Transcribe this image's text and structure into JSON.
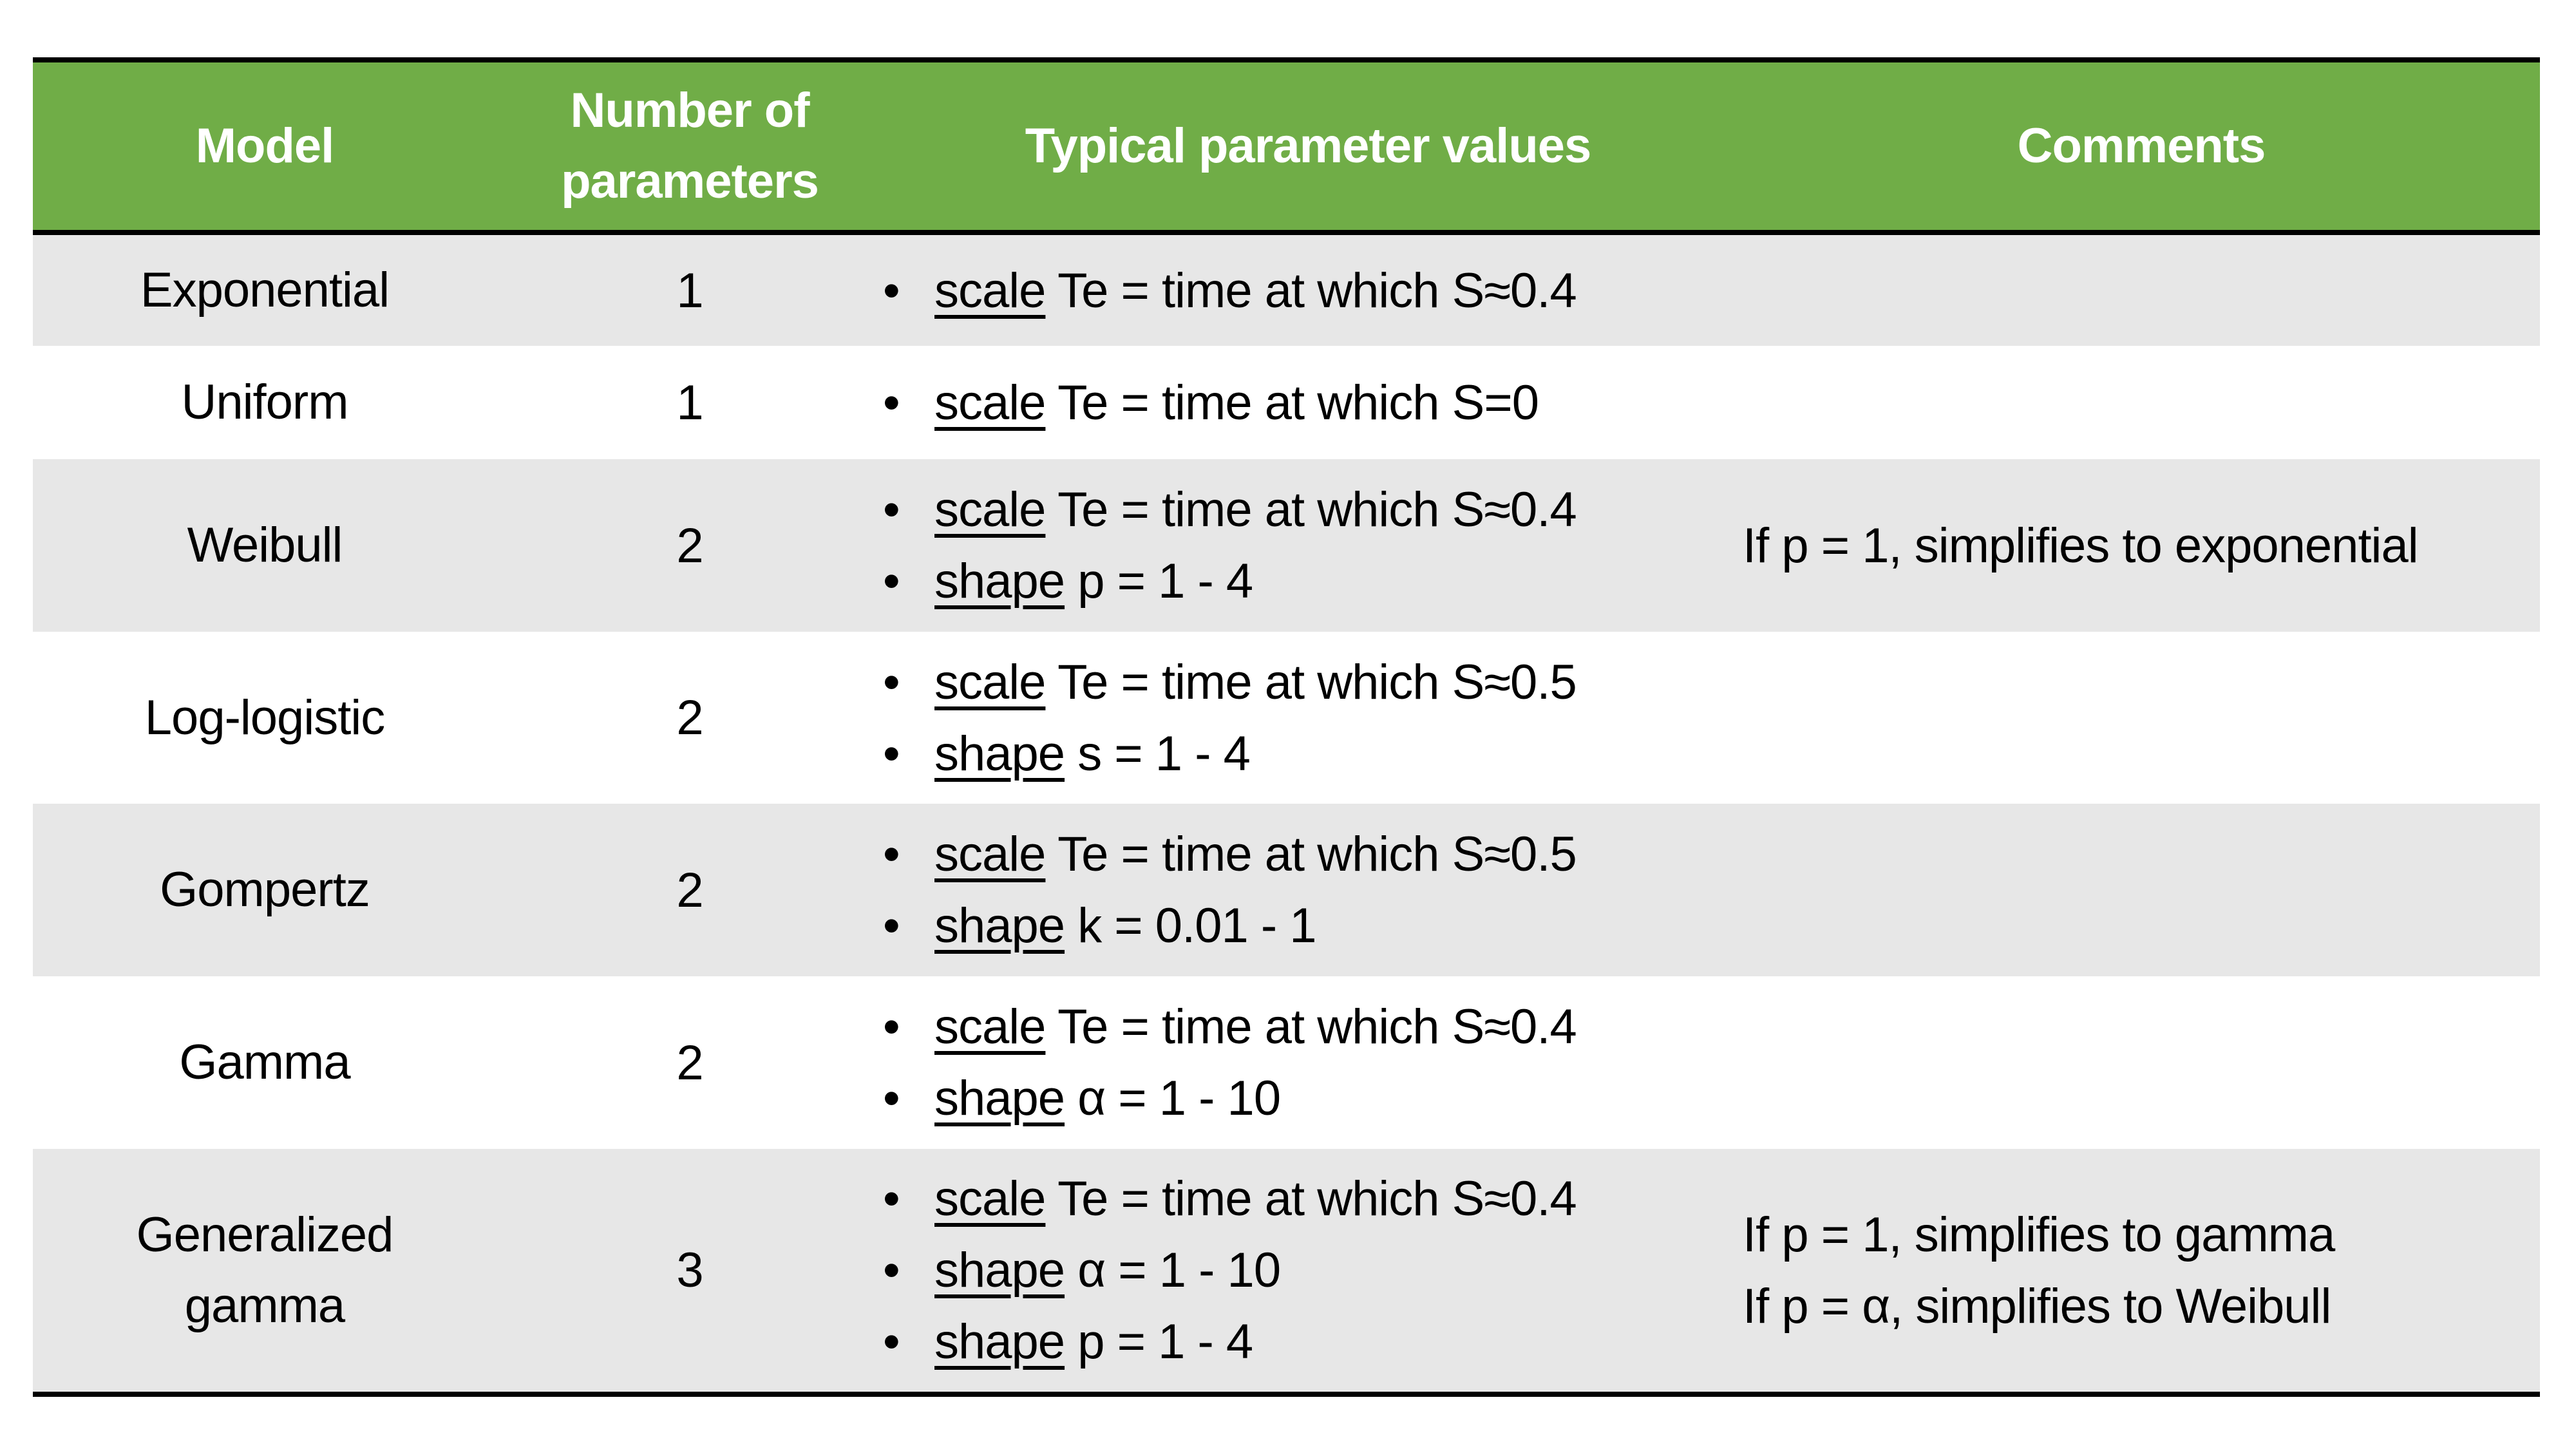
{
  "colors": {
    "header_bg": "#70ad47",
    "header_text": "#ffffff",
    "alt_row_bg": "#e7e7e7"
  },
  "header": {
    "model": "Model",
    "num_params": "Number of parameters",
    "values": "Typical parameter values",
    "comments": "Comments"
  },
  "rows": [
    {
      "model": "Exponential",
      "num": "1",
      "values": [
        {
          "k": "scale",
          "v": " Te = time at which S≈0.4"
        }
      ],
      "comments": []
    },
    {
      "model": "Uniform",
      "num": "1",
      "values": [
        {
          "k": "scale",
          "v": " Te = time at which S=0"
        }
      ],
      "comments": []
    },
    {
      "model": "Weibull",
      "num": "2",
      "values": [
        {
          "k": "scale",
          "v": " Te = time at which S≈0.4"
        },
        {
          "k": "shape",
          "v": " p = 1 - 4"
        }
      ],
      "comments": [
        "If p = 1, simplifies to exponential"
      ]
    },
    {
      "model": "Log-logistic",
      "num": "2",
      "values": [
        {
          "k": "scale",
          "v": " Te = time at which S≈0.5"
        },
        {
          "k": "shape",
          "v": " s = 1 - 4"
        }
      ],
      "comments": []
    },
    {
      "model": "Gompertz",
      "num": "2",
      "values": [
        {
          "k": "scale",
          "v": " Te = time at which S≈0.5"
        },
        {
          "k": "shape",
          "v": " k = 0.01 - 1"
        }
      ],
      "comments": []
    },
    {
      "model": "Gamma",
      "num": "2",
      "values": [
        {
          "k": "scale",
          "v": " Te = time at which S≈0.4"
        },
        {
          "k": "shape",
          "v": " α = 1 - 10"
        }
      ],
      "comments": []
    },
    {
      "model": "Generalized gamma",
      "num": "3",
      "values": [
        {
          "k": "scale",
          "v": " Te = time at which S≈0.4"
        },
        {
          "k": "shape",
          "v": " α = 1 - 10"
        },
        {
          "k": "shape",
          "v": " p = 1 - 4"
        }
      ],
      "comments": [
        "If p = 1, simplifies to gamma",
        "If p = α, simplifies to Weibull"
      ]
    }
  ]
}
